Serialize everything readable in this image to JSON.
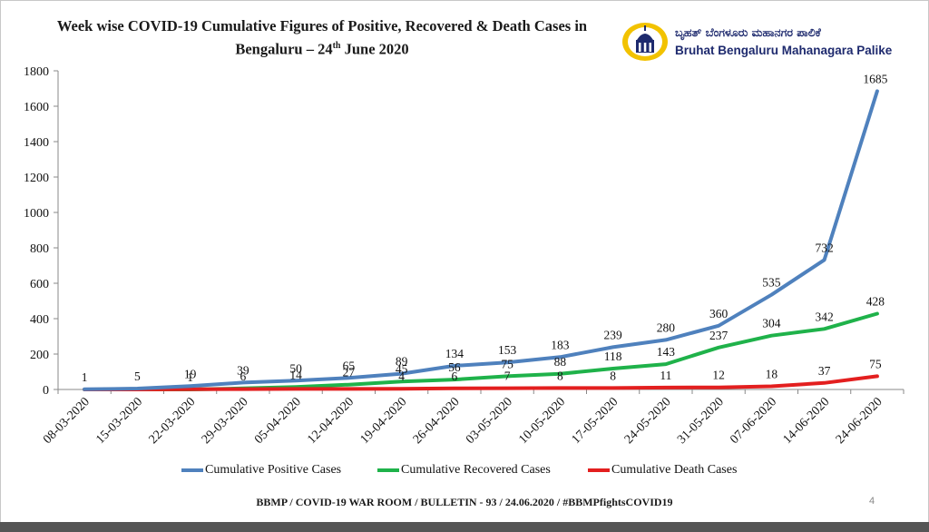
{
  "header": {
    "title_line1": "Week wise COVID-19 Cumulative Figures of Positive,  Recovered  & Death Cases in",
    "title_line2_prefix": "Bengaluru – 24",
    "title_line2_sup": "th",
    "title_line2_suffix": " June 2020"
  },
  "logo": {
    "kannada": "ಬೃಹತ್ ಬೆಂಗಳೂರು ಮಹಾನಗರ ಪಾಲಿಕೆ",
    "english": "Bruhat Bengaluru Mahanagara Palike",
    "icon": "bbmp-emblem-icon",
    "colors": {
      "ring": "#f2c200",
      "building": "#1e2a6e"
    }
  },
  "footer": {
    "text": "BBMP / COVID-19 WAR ROOM / BULLETIN - 93 / 24.06.2020 / #BBMPfightsCOVID19",
    "page_number": "4"
  },
  "chart_data": {
    "type": "line",
    "x": [
      "08-03-2020",
      "15-03-2020",
      "22-03-2020",
      "29-03-2020",
      "05-04-2020",
      "12-04-2020",
      "19-04-2020",
      "26-04-2020",
      "03-05-2020",
      "10-05-2020",
      "17-05-2020",
      "24-05-2020",
      "31-05-2020",
      "07-06-2020",
      "14-06-2020",
      "24-06-2020"
    ],
    "ylim": [
      0,
      1800
    ],
    "yticks": [
      0,
      200,
      400,
      600,
      800,
      1000,
      1200,
      1400,
      1600,
      1800
    ],
    "grid": false,
    "legend_position": "bottom",
    "series": [
      {
        "name": "Cumulative Positive Cases",
        "color": "#4f81bd",
        "values": [
          1,
          5,
          19,
          39,
          50,
          65,
          89,
          134,
          153,
          183,
          239,
          280,
          360,
          535,
          732,
          1685
        ]
      },
      {
        "name": "Cumulative Recovered Cases",
        "color": "#1fb24a",
        "values": [
          0,
          0,
          0,
          6,
          14,
          27,
          45,
          56,
          75,
          88,
          118,
          143,
          237,
          304,
          342,
          428
        ]
      },
      {
        "name": "Cumulative Death Cases",
        "color": "#e31f1f",
        "values": [
          0,
          0,
          1,
          2,
          3,
          3,
          4,
          6,
          7,
          8,
          8,
          11,
          12,
          18,
          37,
          75
        ]
      }
    ],
    "positive_labels": [
      "1",
      "5",
      "19",
      "39",
      "50",
      "65",
      "89",
      "134",
      "153",
      "183",
      "239",
      "280",
      "360",
      "535",
      "732",
      "1685"
    ],
    "recovered_labels": [
      null,
      null,
      null,
      "6",
      "14",
      "27",
      "45",
      "56",
      "75",
      "88",
      "118",
      "143",
      "237",
      "304",
      "342",
      "428"
    ],
    "death_labels": [
      null,
      null,
      "1",
      null,
      null,
      null,
      "4",
      "6",
      "7",
      "8",
      "8",
      "11",
      "12",
      "18",
      "37",
      "75"
    ]
  }
}
